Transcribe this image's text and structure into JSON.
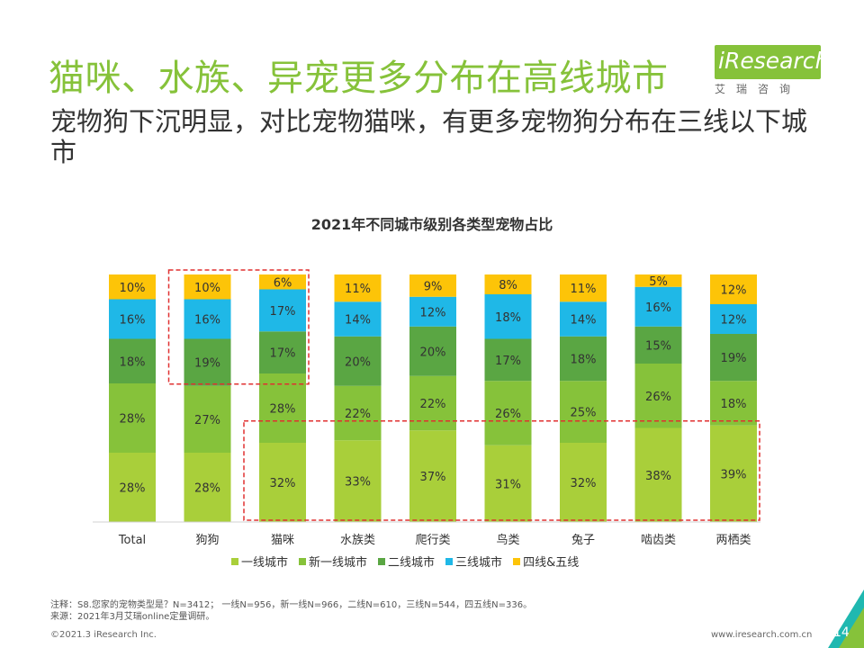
{
  "header": {
    "title": "猫咪、水族、异宠更多分布在高线城市",
    "subtitle": "宠物狗下沉明显，对比宠物猫咪，有更多宠物狗分布在三线以下城市",
    "logo_text": "iResearch",
    "logo_sub": "艾瑞咨询"
  },
  "colors": {
    "accent": "#86c23a",
    "tier1": "#a9cf3a",
    "new_tier1": "#86c23a",
    "tier2": "#5aa643",
    "tier3": "#1fb8e7",
    "tier45": "#fdc408",
    "highlight_box": "#e03030"
  },
  "chart_data": {
    "type": "bar",
    "stacked": true,
    "percent": true,
    "title": "2021年不同城市级别各类型宠物占比",
    "categories": [
      "Total",
      "狗狗",
      "猫咪",
      "水族类",
      "爬行类",
      "鸟类",
      "兔子",
      "啮齿类",
      "两栖类"
    ],
    "series": [
      {
        "name": "一线城市",
        "values": [
          28,
          28,
          32,
          33,
          37,
          31,
          32,
          38,
          39
        ]
      },
      {
        "name": "新一线城市",
        "values": [
          28,
          27,
          28,
          22,
          22,
          26,
          25,
          26,
          18
        ]
      },
      {
        "name": "二线城市",
        "values": [
          18,
          19,
          17,
          20,
          20,
          17,
          18,
          15,
          19
        ]
      },
      {
        "name": "三线城市",
        "values": [
          16,
          16,
          17,
          14,
          12,
          18,
          14,
          16,
          12
        ]
      },
      {
        "name": "四线&五线",
        "values": [
          10,
          10,
          6,
          11,
          9,
          8,
          11,
          5,
          12
        ]
      }
    ],
    "ylim": [
      0,
      100
    ],
    "legend": "bottom",
    "highlights": [
      {
        "categories": [
          "狗狗",
          "猫咪"
        ],
        "series": [
          "二线城市",
          "三线城市",
          "四线&五线"
        ]
      },
      {
        "categories": [
          "猫咪",
          "水族类",
          "爬行类",
          "鸟类",
          "兔子",
          "啮齿类",
          "两栖类"
        ],
        "series": [
          "一线城市"
        ]
      }
    ]
  },
  "notes": {
    "line1": "注释：S8.您家的宠物类型是？N=3412； 一线N=956，新一线N=966，二线N=610，三线N=544，四五线N=336。",
    "line2": "来源：2021年3月艾瑞online定量调研。"
  },
  "footer": {
    "copyright": "©2021.3 iResearch Inc.",
    "website": "www.iresearch.com.cn",
    "page": "14"
  }
}
